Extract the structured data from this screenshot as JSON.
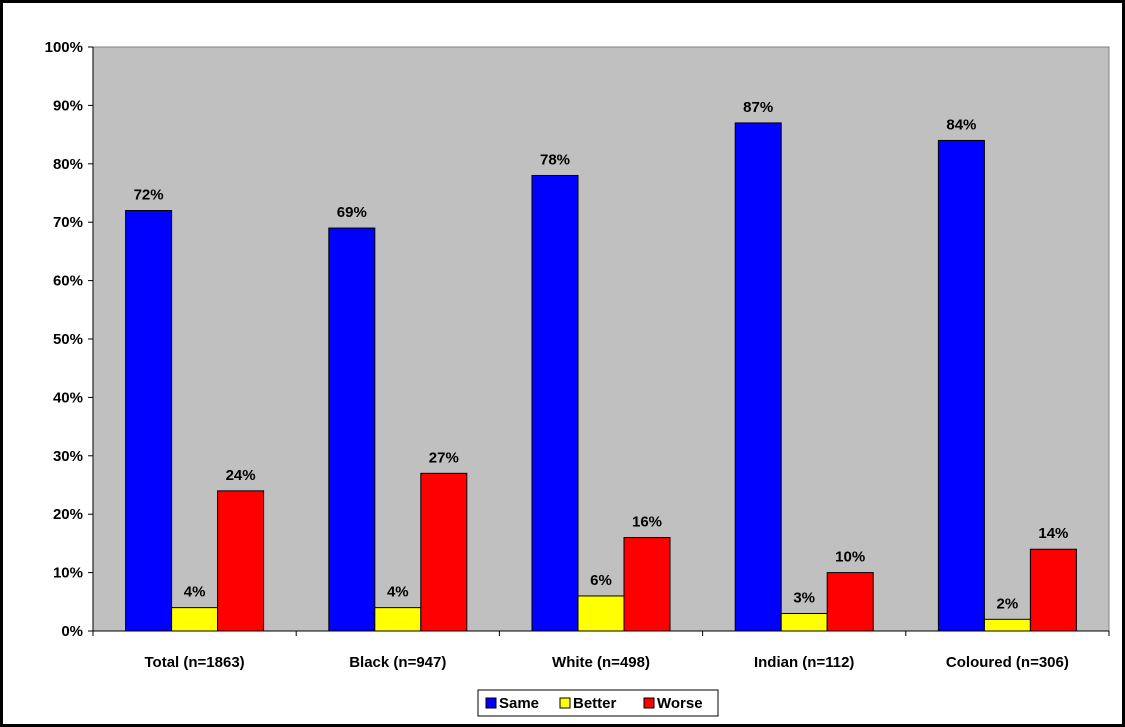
{
  "chart_data": {
    "type": "bar",
    "categories": [
      "Total (n=1863)",
      "Black (n=947)",
      "White (n=498)",
      "Indian (n=112)",
      "Coloured (n=306)"
    ],
    "series": [
      {
        "name": "Same",
        "color": "#0000ff",
        "values": [
          72,
          69,
          78,
          87,
          84
        ],
        "labels": [
          "72%",
          "69%",
          "78%",
          "87%",
          "84%"
        ]
      },
      {
        "name": "Better",
        "color": "#ffff00",
        "values": [
          4,
          4,
          6,
          3,
          2
        ],
        "labels": [
          "4%",
          "4%",
          "6%",
          "3%",
          "2%"
        ]
      },
      {
        "name": "Worse",
        "color": "#ff0000",
        "values": [
          24,
          27,
          16,
          10,
          14
        ],
        "labels": [
          "24%",
          "27%",
          "16%",
          "10%",
          "14%"
        ]
      }
    ],
    "ylim": [
      0,
      100
    ],
    "yticks": [
      "0%",
      "10%",
      "20%",
      "30%",
      "40%",
      "50%",
      "60%",
      "70%",
      "80%",
      "90%",
      "100%"
    ],
    "plot_background": "#c0c0c0",
    "grid": false,
    "legend_position": "bottom"
  }
}
